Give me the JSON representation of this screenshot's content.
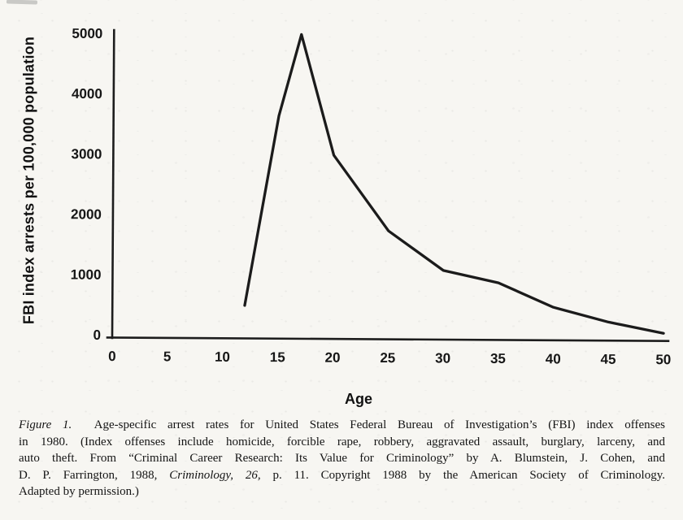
{
  "page": {
    "background_color": "#f7f6f2",
    "ink_color": "#161616"
  },
  "chart_data": {
    "type": "line",
    "title": "",
    "xlabel": "Age",
    "ylabel": "FBI index arrests per 100,000 population",
    "xlim": [
      0,
      50
    ],
    "ylim": [
      0,
      5000
    ],
    "x_ticks": [
      0,
      5,
      10,
      15,
      20,
      25,
      30,
      35,
      40,
      45,
      50
    ],
    "y_ticks": [
      0,
      1000,
      2000,
      3000,
      4000,
      5000
    ],
    "grid": false,
    "legend_position": "none",
    "line_color": "#1b1b1b",
    "series": [
      {
        "name": "Age-specific FBI index arrest rate, 1980",
        "x": [
          12,
          15,
          17,
          20,
          25,
          30,
          35,
          40,
          45,
          50
        ],
        "y": [
          500,
          3650,
          5000,
          3000,
          1750,
          1100,
          900,
          500,
          260,
          80
        ]
      }
    ]
  },
  "caption": {
    "lines": [
      {
        "segments": [
          {
            "text": "Figure 1.",
            "italic": true
          },
          {
            "text": "  Age-specific arrest rates for United States Federal Bureau of Investigation’s (FBI) index offenses",
            "italic": false
          }
        ]
      },
      {
        "segments": [
          {
            "text": "in 1980. (Index offenses include homicide, forcible rape, robbery, aggravated assault, burglary, larceny, and",
            "italic": false
          }
        ]
      },
      {
        "segments": [
          {
            "text": "auto theft. From “Criminal Career Research: Its Value for Criminology” by A. Blumstein, J. Cohen, and",
            "italic": false
          }
        ]
      },
      {
        "segments": [
          {
            "text": "D. P. Farrington, 1988, ",
            "italic": false
          },
          {
            "text": "Criminology, 26,",
            "italic": true
          },
          {
            "text": " p. 11. Copyright 1988 by the American Society of Criminology.",
            "italic": false
          }
        ]
      },
      {
        "segments": [
          {
            "text": "Adapted by permission.)",
            "italic": false
          }
        ]
      }
    ]
  }
}
